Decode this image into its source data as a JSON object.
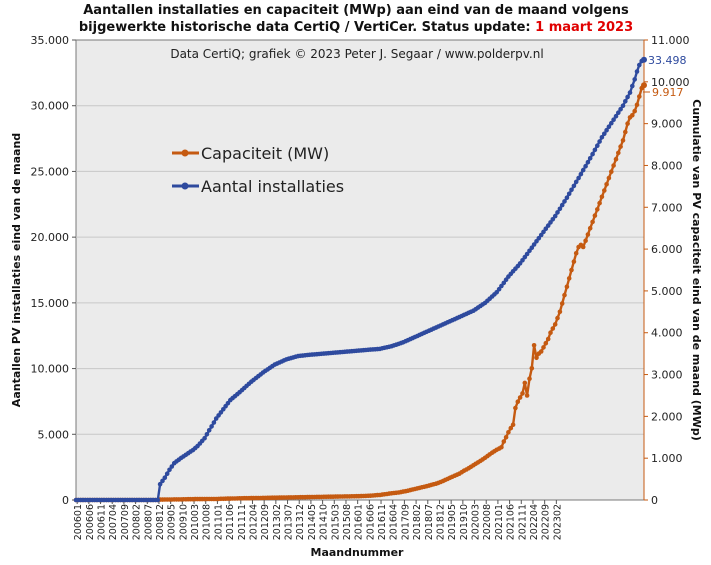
{
  "chart_data": {
    "type": "line",
    "title_line1": "Aantallen installaties en capaciteit (MWp) aan eind van de maand volgens",
    "title_line2_prefix": "bijgewerkte historische data CertiQ / VertiCer. Status update: ",
    "title_line2_date": "1 maart 2023",
    "subtitle": "Data CertiQ; grafiek © 2023  Peter J. Segaar / www.polderpv.nl",
    "xlabel": "Maandnummer",
    "ylabel_left": "Aantallen PV installaties eind van de maand",
    "ylabel_right": "Cumulatie van PV capaciteit eind van de maand (MWp)",
    "x_ticks": [
      "200601",
      "200606",
      "200611",
      "200704",
      "200709",
      "200802",
      "200807",
      "200812",
      "200905",
      "200910",
      "201003",
      "201008",
      "201101",
      "201106",
      "201111",
      "201204",
      "201209",
      "201302",
      "201307",
      "201312",
      "201405",
      "201410",
      "201503",
      "201508",
      "201601",
      "201606",
      "201611",
      "201604",
      "201709",
      "201802",
      "201807",
      "201812",
      "201905",
      "201910",
      "202003",
      "202008",
      "202101",
      "202106",
      "202111",
      "202204",
      "202209",
      "202302"
    ],
    "y_left_ticks": [
      "0",
      "5.000",
      "10.000",
      "15.000",
      "20.000",
      "25.000",
      "30.000",
      "35.000"
    ],
    "y_right_ticks": [
      "0",
      "1.000",
      "2.000",
      "3.000",
      "4.000",
      "5.000",
      "6.000",
      "7.000",
      "8.000",
      "9.000",
      "10.000",
      "11.000"
    ],
    "ylim_left": [
      0,
      35000
    ],
    "ylim_right": [
      0,
      11000
    ],
    "grid": true,
    "legend_position": "upper-left",
    "end_labels": {
      "installations": "33.498",
      "capacity": "9.917"
    },
    "series": [
      {
        "name": "Capaciteit (MW)",
        "axis": "right",
        "color": "#c55a11",
        "points": [
          [
            0,
            0
          ],
          [
            35,
            0
          ],
          [
            36,
            10
          ],
          [
            45,
            15
          ],
          [
            50,
            20
          ],
          [
            60,
            25
          ],
          [
            70,
            40
          ],
          [
            80,
            50
          ],
          [
            90,
            60
          ],
          [
            100,
            70
          ],
          [
            110,
            80
          ],
          [
            120,
            90
          ],
          [
            125,
            100
          ],
          [
            130,
            120
          ],
          [
            135,
            160
          ],
          [
            138,
            180
          ],
          [
            141,
            210
          ],
          [
            144,
            250
          ],
          [
            147,
            290
          ],
          [
            150,
            330
          ],
          [
            152,
            360
          ],
          [
            154,
            390
          ],
          [
            156,
            430
          ],
          [
            158,
            480
          ],
          [
            160,
            530
          ],
          [
            162,
            580
          ],
          [
            164,
            630
          ],
          [
            166,
            700
          ],
          [
            168,
            760
          ],
          [
            170,
            830
          ],
          [
            172,
            900
          ],
          [
            174,
            970
          ],
          [
            176,
            1050
          ],
          [
            178,
            1130
          ],
          [
            180,
            1200
          ],
          [
            182,
            1260
          ],
          [
            183,
            1400
          ],
          [
            184,
            1500
          ],
          [
            185,
            1620
          ],
          [
            186,
            1720
          ],
          [
            187,
            1800
          ],
          [
            188,
            2200
          ],
          [
            189,
            2350
          ],
          [
            190,
            2450
          ],
          [
            191,
            2550
          ],
          [
            192,
            2800
          ],
          [
            193,
            2500
          ],
          [
            194,
            2900
          ],
          [
            195,
            3150
          ],
          [
            196,
            3700
          ],
          [
            197,
            3400
          ],
          [
            198,
            3500
          ],
          [
            199,
            3550
          ],
          [
            200,
            3650
          ],
          [
            201,
            3750
          ],
          [
            202,
            3850
          ],
          [
            203,
            4000
          ],
          [
            204,
            4100
          ],
          [
            205,
            4200
          ],
          [
            206,
            4350
          ],
          [
            207,
            4500
          ],
          [
            208,
            4700
          ],
          [
            209,
            4900
          ],
          [
            210,
            5100
          ],
          [
            211,
            5300
          ],
          [
            212,
            5500
          ],
          [
            213,
            5700
          ],
          [
            214,
            5900
          ],
          [
            215,
            6050
          ],
          [
            216,
            6100
          ],
          [
            217,
            6050
          ],
          [
            218,
            6200
          ],
          [
            219,
            6350
          ],
          [
            220,
            6500
          ],
          [
            221,
            6650
          ],
          [
            222,
            6800
          ],
          [
            223,
            6950
          ],
          [
            224,
            7100
          ],
          [
            225,
            7250
          ],
          [
            226,
            7400
          ],
          [
            227,
            7550
          ],
          [
            228,
            7700
          ],
          [
            229,
            7850
          ],
          [
            230,
            8000
          ],
          [
            231,
            8150
          ],
          [
            232,
            8300
          ],
          [
            233,
            8450
          ],
          [
            234,
            8600
          ],
          [
            235,
            8800
          ],
          [
            236,
            9000
          ],
          [
            237,
            9150
          ],
          [
            238,
            9200
          ],
          [
            239,
            9300
          ],
          [
            240,
            9450
          ],
          [
            241,
            9650
          ],
          [
            242,
            9850
          ],
          [
            243,
            9917
          ]
        ]
      },
      {
        "name": "Aantal installaties",
        "axis": "left",
        "color": "#2e4a9e",
        "points": [
          [
            0,
            0
          ],
          [
            35,
            0
          ],
          [
            36,
            1200
          ],
          [
            38,
            1700
          ],
          [
            40,
            2300
          ],
          [
            42,
            2800
          ],
          [
            45,
            3200
          ],
          [
            50,
            3800
          ],
          [
            52,
            4100
          ],
          [
            55,
            4700
          ],
          [
            58,
            5600
          ],
          [
            60,
            6200
          ],
          [
            63,
            6900
          ],
          [
            66,
            7600
          ],
          [
            70,
            8200
          ],
          [
            75,
            9000
          ],
          [
            80,
            9700
          ],
          [
            85,
            10300
          ],
          [
            90,
            10700
          ],
          [
            95,
            10950
          ],
          [
            100,
            11050
          ],
          [
            110,
            11200
          ],
          [
            120,
            11350
          ],
          [
            130,
            11500
          ],
          [
            135,
            11700
          ],
          [
            140,
            12000
          ],
          [
            145,
            12400
          ],
          [
            150,
            12800
          ],
          [
            155,
            13200
          ],
          [
            160,
            13600
          ],
          [
            165,
            14000
          ],
          [
            170,
            14400
          ],
          [
            175,
            15000
          ],
          [
            180,
            15800
          ],
          [
            185,
            17000
          ],
          [
            190,
            18000
          ],
          [
            195,
            19200
          ],
          [
            200,
            20400
          ],
          [
            205,
            21600
          ],
          [
            210,
            23000
          ],
          [
            215,
            24500
          ],
          [
            220,
            26000
          ],
          [
            225,
            27600
          ],
          [
            228,
            28400
          ],
          [
            231,
            29200
          ],
          [
            234,
            30000
          ],
          [
            237,
            31000
          ],
          [
            239,
            32000
          ],
          [
            240,
            32600
          ],
          [
            241,
            33100
          ],
          [
            242,
            33400
          ],
          [
            243,
            33498
          ]
        ]
      }
    ]
  }
}
